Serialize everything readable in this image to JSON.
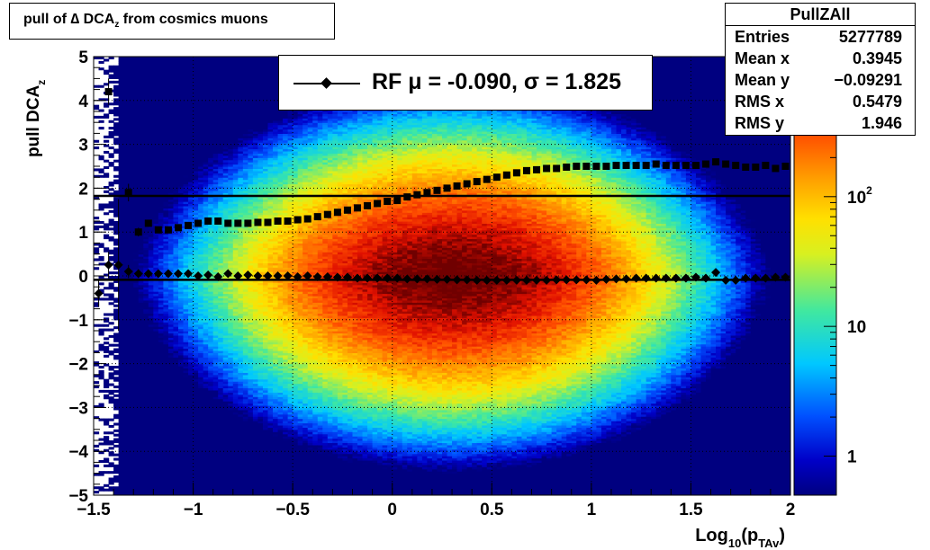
{
  "chart_data": {
    "type": "heatmap",
    "title": "pull of ∆ DCA",
    "title_sub": "z",
    "title_tail": "from cosmics muons",
    "xlabel": "Log",
    "xlabel_sub1": "10",
    "xlabel_mid": "(p",
    "xlabel_sub2": "TAv",
    "xlabel_tail": ")",
    "ylabel": "pull DCA",
    "ylabel_sub": "z",
    "xlim": [
      -1.5,
      2
    ],
    "ylim": [
      -5,
      5
    ],
    "grid": true,
    "z_scale": "log",
    "x_ticks": [
      {
        "v": -1.5,
        "label": "−1.5"
      },
      {
        "v": -1,
        "label": "−1"
      },
      {
        "v": -0.5,
        "label": "−0.5"
      },
      {
        "v": 0,
        "label": "0"
      },
      {
        "v": 0.5,
        "label": "0.5"
      },
      {
        "v": 1,
        "label": "1"
      },
      {
        "v": 1.5,
        "label": "1.5"
      },
      {
        "v": 2,
        "label": "2"
      }
    ],
    "y_ticks": [
      {
        "v": 5,
        "label": "5"
      },
      {
        "v": 4,
        "label": "4"
      },
      {
        "v": 3,
        "label": "3"
      },
      {
        "v": 2,
        "label": "2"
      },
      {
        "v": 1,
        "label": "1"
      },
      {
        "v": 0,
        "label": "0"
      },
      {
        "v": -1,
        "label": "−1"
      },
      {
        "v": -2,
        "label": "−2"
      },
      {
        "v": -3,
        "label": "−3"
      },
      {
        "v": -4,
        "label": "−4"
      },
      {
        "v": -5,
        "label": "−5"
      }
    ],
    "z_ticks": [
      {
        "v": 1,
        "label": "1"
      },
      {
        "v": 10,
        "label": "10"
      },
      {
        "v": 100,
        "label": "10",
        "sup": "2"
      }
    ],
    "zlim": [
      0.5,
      1200
    ],
    "series": [
      {
        "name": "RF",
        "marker": "diamond",
        "x": [
          -1.475,
          -1.425,
          -1.375,
          -1.325,
          -1.275,
          -1.225,
          -1.175,
          -1.125,
          -1.075,
          -1.025,
          -0.975,
          -0.925,
          -0.875,
          -0.825,
          -0.775,
          -0.725,
          -0.675,
          -0.625,
          -0.575,
          -0.525,
          -0.475,
          -0.425,
          -0.375,
          -0.325,
          -0.275,
          -0.225,
          -0.175,
          -0.125,
          -0.075,
          -0.025,
          0.025,
          0.075,
          0.125,
          0.175,
          0.225,
          0.275,
          0.325,
          0.375,
          0.425,
          0.475,
          0.525,
          0.575,
          0.625,
          0.675,
          0.725,
          0.775,
          0.825,
          0.875,
          0.925,
          0.975,
          1.025,
          1.075,
          1.125,
          1.175,
          1.225,
          1.275,
          1.325,
          1.375,
          1.425,
          1.475,
          1.525,
          1.575,
          1.625,
          1.675,
          1.725,
          1.775,
          1.825,
          1.875,
          1.925,
          1.975
        ],
        "y": [
          -0.4,
          0.25,
          0.25,
          0.1,
          0.05,
          0.05,
          0.05,
          0.05,
          0.05,
          0.05,
          0.0,
          0.02,
          -0.02,
          0.05,
          0.0,
          0.02,
          0.0,
          0.0,
          0.0,
          0.0,
          -0.02,
          0.0,
          -0.02,
          -0.02,
          -0.03,
          -0.03,
          -0.05,
          -0.05,
          -0.05,
          -0.05,
          -0.05,
          -0.07,
          -0.07,
          -0.07,
          -0.08,
          -0.08,
          -0.09,
          -0.09,
          -0.1,
          -0.1,
          -0.1,
          -0.1,
          -0.1,
          -0.1,
          -0.1,
          -0.1,
          -0.09,
          -0.09,
          -0.09,
          -0.09,
          -0.1,
          -0.08,
          -0.07,
          -0.07,
          -0.05,
          -0.05,
          -0.05,
          -0.05,
          -0.05,
          -0.05,
          -0.03,
          -0.05,
          0.08,
          -0.1,
          -0.1,
          -0.05,
          -0.05,
          -0.05,
          -0.03,
          -0.03
        ],
        "err": [
          0.3,
          0.3,
          1.5,
          0.15,
          0.1,
          0.07,
          0.05,
          0.05,
          0.05,
          0.04,
          0.04,
          0.03,
          0.03,
          0.03,
          0.02,
          0.02,
          0.02,
          0.02,
          0.02,
          0.02,
          0.02,
          0.02,
          0.02,
          0.02,
          0.02,
          0.02,
          0.02,
          0.02,
          0.02,
          0.02,
          0.02,
          0.02,
          0.02,
          0.02,
          0.02,
          0.02,
          0.02,
          0.02,
          0.02,
          0.02,
          0.02,
          0.02,
          0.02,
          0.02,
          0.02,
          0.02,
          0.02,
          0.02,
          0.02,
          0.02,
          0.02,
          0.02,
          0.02,
          0.02,
          0.02,
          0.02,
          0.02,
          0.02,
          0.02,
          0.02,
          0.03,
          0.03,
          0.04,
          0.04,
          0.04,
          0.05,
          0.05,
          0.05,
          0.05,
          0.05
        ]
      },
      {
        "name": "",
        "marker": "square",
        "x": [
          -1.475,
          -1.425,
          -1.375,
          -1.325,
          -1.275,
          -1.225,
          -1.175,
          -1.125,
          -1.075,
          -1.025,
          -0.975,
          -0.925,
          -0.875,
          -0.825,
          -0.775,
          -0.725,
          -0.675,
          -0.625,
          -0.575,
          -0.525,
          -0.475,
          -0.425,
          -0.375,
          -0.325,
          -0.275,
          -0.225,
          -0.175,
          -0.125,
          -0.075,
          -0.025,
          0.025,
          0.075,
          0.125,
          0.175,
          0.225,
          0.275,
          0.325,
          0.375,
          0.425,
          0.475,
          0.525,
          0.575,
          0.625,
          0.675,
          0.725,
          0.775,
          0.825,
          0.875,
          0.925,
          0.975,
          1.025,
          1.075,
          1.125,
          1.175,
          1.225,
          1.275,
          1.325,
          1.375,
          1.425,
          1.475,
          1.525,
          1.575,
          1.625,
          1.675,
          1.725,
          1.775,
          1.825,
          1.875,
          1.925,
          1.975
        ],
        "y": [
          null,
          4.2,
          null,
          1.9,
          1.0,
          1.2,
          1.05,
          1.05,
          1.1,
          1.15,
          1.2,
          1.25,
          1.25,
          1.2,
          1.2,
          1.2,
          1.22,
          1.22,
          1.25,
          1.25,
          1.28,
          1.3,
          1.35,
          1.4,
          1.45,
          1.5,
          1.55,
          1.6,
          1.65,
          1.7,
          1.72,
          1.8,
          1.85,
          1.9,
          1.95,
          2.0,
          2.05,
          2.1,
          2.15,
          2.2,
          2.25,
          2.3,
          2.35,
          2.4,
          2.42,
          2.45,
          2.45,
          2.48,
          2.5,
          2.5,
          2.5,
          2.5,
          2.52,
          2.52,
          2.52,
          2.52,
          2.55,
          2.52,
          2.52,
          2.52,
          2.52,
          2.55,
          2.6,
          2.55,
          2.52,
          2.48,
          2.48,
          2.52,
          2.45,
          2.5
        ],
        "err": [
          0,
          0.3,
          0,
          0.2,
          0.1,
          0.08,
          0.06,
          0.05,
          0.05,
          0.04,
          0.04,
          0.03,
          0.03,
          0.03,
          0.02,
          0.02,
          0.02,
          0.02,
          0.02,
          0.02,
          0.02,
          0.02,
          0.02,
          0.02,
          0.02,
          0.02,
          0.02,
          0.02,
          0.02,
          0.02,
          0.02,
          0.02,
          0.02,
          0.02,
          0.02,
          0.02,
          0.02,
          0.02,
          0.02,
          0.02,
          0.02,
          0.02,
          0.02,
          0.02,
          0.02,
          0.02,
          0.02,
          0.02,
          0.02,
          0.02,
          0.02,
          0.02,
          0.02,
          0.02,
          0.02,
          0.02,
          0.02,
          0.02,
          0.02,
          0.02,
          0.03,
          0.03,
          0.04,
          0.04,
          0.04,
          0.05,
          0.05,
          0.05,
          0.05,
          0.05
        ]
      }
    ],
    "hlines": [
      {
        "y": -0.09
      },
      {
        "y": 1.825
      }
    ]
  },
  "legend": {
    "label": "RF μ = -0.090, σ =   1.825"
  },
  "stats": {
    "name": "PullZAll",
    "rows": [
      {
        "k": "Entries",
        "v": "5277789"
      },
      {
        "k": "Mean x",
        "v": "0.3945"
      },
      {
        "k": "Mean y",
        "v": "−0.09291"
      },
      {
        "k": "RMS x",
        "v": "0.5479"
      },
      {
        "k": "RMS y",
        "v": "1.946"
      }
    ]
  }
}
